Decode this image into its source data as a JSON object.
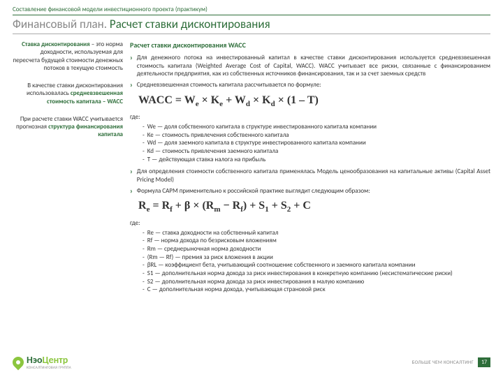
{
  "header": {
    "sub_title": "Составление финансовой модели инвестиционного проекта (практикум)",
    "main_title_gray": "Финансовый план. ",
    "main_title_green": "Расчет ставки дисконтирования"
  },
  "left": {
    "b1_hl": "Ставка дисконтирования",
    "b1_rest": " – это норма доходности, используемая для пересчета будущей стоимости денежных потоков в текущую стоимость",
    "b2_pre": "В качестве ставки дисконтирования использовалась ",
    "b2_hl": "средневзвешенная стоимость капитала – WACC",
    "b3_pre": "При расчете ставки WACC учитывается прогнозная ",
    "b3_hl": "структура финансирования капитала"
  },
  "right": {
    "section_title": "Расчет ставки дисконтирования WACC",
    "p1": "Для денежного потока на инвестированный капитал в качестве ставки дисконтирования используется средневзвешенная стоимость капитала (Weighted Average Cost of Capital, WACC). WACC учитывает все риски, связанные с финансированием деятельности предприятия, как из собственных источников финансирования, так и за счет заемных средств",
    "p2": "Средневзвешенная стоимость капитала рассчитывается по формуле:",
    "formula1": "WACC = W<sub>e</sub> × K<sub>e</sub> + W<sub>d</sub> × K<sub>d</sub> × (1 – T)",
    "where": "где:",
    "defs1": [
      "We — доля собственного капитала в структуре инвестированного капитала компании",
      "Ke — стоимость привлечения собственного капитала",
      "Wd — доля заемного капитала в структуре инвестированного капитала компании",
      "Kd — стоимость привлечения заемного капитала",
      "T — действующая ставка налога на прибыль"
    ],
    "p3": "Для определения стоимости собственного капитала применялась Модель ценообразования на капитальные активы (Capital Asset Pricing Model)",
    "p4": "Формула CAPM применительно к российской практике выглядит следующим образом:",
    "formula2": "R<sub>e</sub> = R<sub>f</sub> + β × (R<sub>m</sub> − R<sub>f</sub>) + S<sub>1</sub> + S<sub>2</sub> + C",
    "defs2": [
      "Re — ставка доходности на собственный капитал",
      "Rf — норма дохода по безрисковым вложениям",
      "Rm — среднерыночная норма доходности",
      "(Rm — Rf) — премия за риск вложения в акции",
      "βRL — коэффициент бета, учитывающий соотношение собственного и заемного капитала компании",
      "S1 — дополнительная норма дохода за риск инвестирования в конкретную компанию (несистематические риски)",
      "S2 — дополнительная норма дохода за риск инвестирования в малую компанию",
      "C — дополнительная норма дохода, учитывающая страновой риск"
    ]
  },
  "footer": {
    "logo_green": "Нэо",
    "logo_light": "Центр",
    "logo_sub": "КОНСАЛТИНГОВАЯ ГРУППА",
    "tagline": "БОЛЬШЕ ЧЕМ КОНСАЛТИНГ",
    "page": "17"
  }
}
